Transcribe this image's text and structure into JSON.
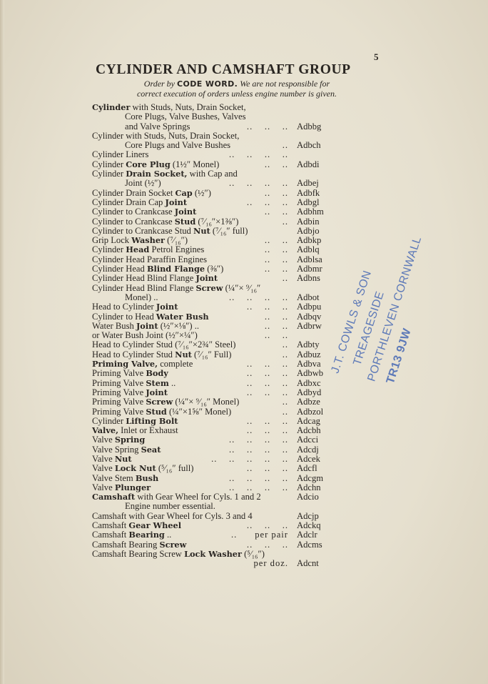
{
  "page_number": "5",
  "title": "CYLINDER AND CAMSHAFT GROUP",
  "subtitle": {
    "line1_pre": "Order by ",
    "line1_bold": "CODE WORD.",
    "line1_post": " We are not responsible for",
    "line2": "correct execution of orders unless engine number is given."
  },
  "rows": [
    {
      "parts": [
        [
          "Cylinder",
          1
        ],
        [
          " with Studs, Nuts, Drain Socket,",
          0
        ]
      ],
      "leader": "",
      "code": ""
    },
    {
      "indent": true,
      "parts": [
        [
          "Core  Plugs,  Valve  Bushes,  Valves",
          0
        ]
      ],
      "leader": "",
      "code": ""
    },
    {
      "indent": true,
      "parts": [
        [
          "and Valve Springs",
          0
        ]
      ],
      "leader": "..    ..    ..",
      "code": "Adbbg"
    },
    {
      "parts": [
        [
          "Cylinder with Studs, Nuts, Drain Socket,",
          0
        ]
      ],
      "leader": "",
      "code": ""
    },
    {
      "indent": true,
      "parts": [
        [
          "Core Plugs and Valve Bushes",
          0
        ]
      ],
      "leader": "..",
      "code": "Adbch"
    },
    {
      "parts": [
        [
          "Cylinder Liners",
          0
        ]
      ],
      "leader": "..    ..    ..    ..",
      "code": ""
    },
    {
      "parts": [
        [
          "Cylinder ",
          0
        ],
        [
          "Core Plug",
          1
        ],
        [
          " (1½″ Monel)",
          0
        ]
      ],
      "leader": "..    ..",
      "code": "Adbdi"
    },
    {
      "parts": [
        [
          "Cylinder ",
          0
        ],
        [
          "Drain Socket,",
          1
        ],
        [
          " with Cap and",
          0
        ]
      ],
      "leader": "",
      "code": ""
    },
    {
      "indent": true,
      "parts": [
        [
          "Joint (½″)",
          0
        ]
      ],
      "leader": "..    ..    ..    ..",
      "code": "Adbej"
    },
    {
      "parts": [
        [
          "Cylinder Drain Socket ",
          0
        ],
        [
          "Cap",
          1
        ],
        [
          " (½″)",
          0
        ]
      ],
      "leader": "..    ..",
      "code": "Adbfk"
    },
    {
      "parts": [
        [
          "Cylinder Drain Cap ",
          0
        ],
        [
          "Joint",
          1
        ]
      ],
      "leader": "..    ..    ..",
      "code": "Adbgl"
    },
    {
      "parts": [
        [
          "Cylinder to Crankcase ",
          0
        ],
        [
          "Joint",
          1
        ]
      ],
      "leader": "..    ..",
      "code": "Adbhm"
    },
    {
      "parts": [
        [
          "Cylinder to Crankcase ",
          0
        ],
        [
          "Stud",
          1
        ],
        [
          " (⁷⁄₁₆″×1⅜″)",
          0
        ]
      ],
      "leader": "..",
      "code": "Adbin"
    },
    {
      "parts": [
        [
          "Cylinder to Crankcase Stud ",
          0
        ],
        [
          "Nut",
          1
        ],
        [
          " (⁷⁄₁₆″ full)",
          0
        ]
      ],
      "leader": "",
      "code": "Adbjo"
    },
    {
      "parts": [
        [
          "Grip Lock ",
          0
        ],
        [
          "Washer",
          1
        ],
        [
          " (⁷⁄₁₆″)",
          0
        ]
      ],
      "leader": "..    ..",
      "code": "Adbkp"
    },
    {
      "parts": [
        [
          "Cylinder ",
          0
        ],
        [
          "Head",
          1
        ],
        [
          " Petrol Engines",
          0
        ]
      ],
      "leader": "..    ..",
      "code": "Adblq"
    },
    {
      "parts": [
        [
          "Cylinder Head Paraffin Engines",
          0
        ]
      ],
      "leader": "..    ..",
      "code": "Adblsa"
    },
    {
      "parts": [
        [
          "Cylinder Head ",
          0
        ],
        [
          "Blind Flange",
          1
        ],
        [
          " (⅜″)",
          0
        ]
      ],
      "leader": "..    ..",
      "code": "Adbmr"
    },
    {
      "parts": [
        [
          "Cylinder Head Blind Flange ",
          0
        ],
        [
          "Joint",
          1
        ]
      ],
      "leader": "..",
      "code": "Adbns"
    },
    {
      "parts": [
        [
          "Cylinder Head Blind Flange ",
          0
        ],
        [
          "Screw",
          1
        ],
        [
          " (¼″× ⁹⁄₁₆″",
          0
        ]
      ],
      "leader": "",
      "code": ""
    },
    {
      "indent": true,
      "parts": [
        [
          "Monel) ..",
          0
        ]
      ],
      "leader": "..    ..    ..    ..",
      "code": "Adbot"
    },
    {
      "parts": [
        [
          "Head to Cylinder ",
          0
        ],
        [
          "Joint",
          1
        ]
      ],
      "leader": "..    ..    ..",
      "code": "Adbpu"
    },
    {
      "parts": [
        [
          "Cylinder to Head ",
          0
        ],
        [
          "Water Bush",
          1
        ]
      ],
      "leader": "..    ..",
      "code": "Adbqv"
    },
    {
      "parts": [
        [
          "Water Bush ",
          0
        ],
        [
          "Joint",
          1
        ],
        [
          " (½″×⅛″) ..",
          0
        ]
      ],
      "leader": "..    ..",
      "code": "Adbrw"
    },
    {
      "parts": [
        [
          "or Water Bush Joint (½″×¼″)",
          0
        ]
      ],
      "leader": "..    ..",
      "code": ""
    },
    {
      "parts": [
        [
          "Head to Cylinder Stud (⁷⁄₁₆″×2¾″ Steel)",
          0
        ]
      ],
      "leader": "..",
      "code": "Adbty"
    },
    {
      "parts": [
        [
          "Head to Cylinder Stud ",
          0
        ],
        [
          "Nut",
          1
        ],
        [
          " (⁷⁄₁₆″ Full)",
          0
        ]
      ],
      "leader": "..",
      "code": "Adbuz"
    },
    {
      "parts": [
        [
          "Priming Valve,",
          1
        ],
        [
          " complete",
          0
        ]
      ],
      "leader": "..    ..    ..",
      "code": "Adbva"
    },
    {
      "parts": [
        [
          "Priming Valve ",
          0
        ],
        [
          "Body",
          1
        ]
      ],
      "leader": "..    ..    ..",
      "code": "Adbwb"
    },
    {
      "parts": [
        [
          "Priming Valve ",
          0
        ],
        [
          "Stem",
          1
        ],
        [
          " ..",
          0
        ]
      ],
      "leader": "..    ..    ..",
      "code": "Adbxc"
    },
    {
      "parts": [
        [
          "Priming Valve ",
          0
        ],
        [
          "Joint",
          1
        ]
      ],
      "leader": "..    ..    ..",
      "code": "Adbyd"
    },
    {
      "parts": [
        [
          "Priming Valve ",
          0
        ],
        [
          "Screw",
          1
        ],
        [
          " (¼″× ⁹⁄₁₆″ Monel)",
          0
        ]
      ],
      "leader": "..",
      "code": "Adbze"
    },
    {
      "parts": [
        [
          "Priming Valve ",
          0
        ],
        [
          "Stud",
          1
        ],
        [
          " (¼″×1⅝″ Monel)",
          0
        ]
      ],
      "leader": "..",
      "code": "Adbzol"
    },
    {
      "parts": [
        [
          "Cylinder ",
          0
        ],
        [
          "Lifting Bolt",
          1
        ]
      ],
      "leader": "..    ..    ..",
      "code": "Adcag"
    },
    {
      "parts": [
        [
          "Valve,",
          1
        ],
        [
          " Inlet or Exhaust",
          0
        ]
      ],
      "leader": "..    ..    ..",
      "code": "Adcbh"
    },
    {
      "parts": [
        [
          "Valve ",
          0
        ],
        [
          "Spring",
          1
        ]
      ],
      "leader": "..    ..    ..    ..",
      "code": "Adcci"
    },
    {
      "parts": [
        [
          "Valve Spring ",
          0
        ],
        [
          "Seat",
          1
        ]
      ],
      "leader": "..    ..    ..    ..",
      "code": "Adcdj"
    },
    {
      "parts": [
        [
          "Valve ",
          0
        ],
        [
          "Nut",
          1
        ]
      ],
      "leader": "..    ..    ..    ..    ..",
      "code": "Adcek"
    },
    {
      "parts": [
        [
          "Valve ",
          0
        ],
        [
          "Lock Nut",
          1
        ],
        [
          " (⁵⁄₁₆″ full)",
          0
        ]
      ],
      "leader": "..    ..    ..",
      "code": "Adcfl"
    },
    {
      "parts": [
        [
          "Valve Stem ",
          0
        ],
        [
          "Bush",
          1
        ]
      ],
      "leader": "..    ..    ..    ..",
      "code": "Adcgm"
    },
    {
      "parts": [
        [
          "Valve ",
          0
        ],
        [
          "Plunger",
          1
        ]
      ],
      "leader": "..    ..    ..    ..",
      "code": "Adchn"
    },
    {
      "parts": [
        [
          "Camshaft",
          1
        ],
        [
          " with Gear Wheel for Cyls. 1 and 2",
          0
        ]
      ],
      "leader": "",
      "code": "Adcio"
    },
    {
      "indent": true,
      "half": true,
      "parts": [
        [
          "Engine number essential.",
          0
        ]
      ],
      "leader": "",
      "code": ""
    },
    {
      "parts": [
        [
          "Camshaft with Gear Wheel for Cyls. 3 and 4",
          0
        ]
      ],
      "leader": "",
      "code": "Adcjp"
    },
    {
      "parts": [
        [
          "Camshaft ",
          0
        ],
        [
          "Gear Wheel",
          1
        ]
      ],
      "leader": "..    ..    ..",
      "code": "Adckq"
    },
    {
      "parts": [
        [
          "Camshaft ",
          0
        ],
        [
          "Bearing",
          1
        ],
        [
          " ..",
          0
        ]
      ],
      "leader": "..      per pair",
      "code": "Adclr"
    },
    {
      "parts": [
        [
          "Camshaft Bearing ",
          0
        ],
        [
          "Screw",
          1
        ]
      ],
      "leader": "..    ..    ..",
      "code": "Adcms"
    },
    {
      "parts": [
        [
          "Camshaft Bearing Screw ",
          0
        ],
        [
          "Lock Washer",
          1
        ],
        [
          " (⁵⁄₁₆″)",
          0
        ]
      ],
      "leader": "",
      "code": ""
    },
    {
      "parts": [
        [
          "",
          0
        ]
      ],
      "leader": "per doz.",
      "code": "Adcnt"
    }
  ],
  "stamp": {
    "color": "#4668b4",
    "lines": [
      "J.T. COWLS & SON",
      "TREAGESIDE",
      "PORTHLEVEN CORNWALL",
      "TR13 9JW"
    ]
  }
}
